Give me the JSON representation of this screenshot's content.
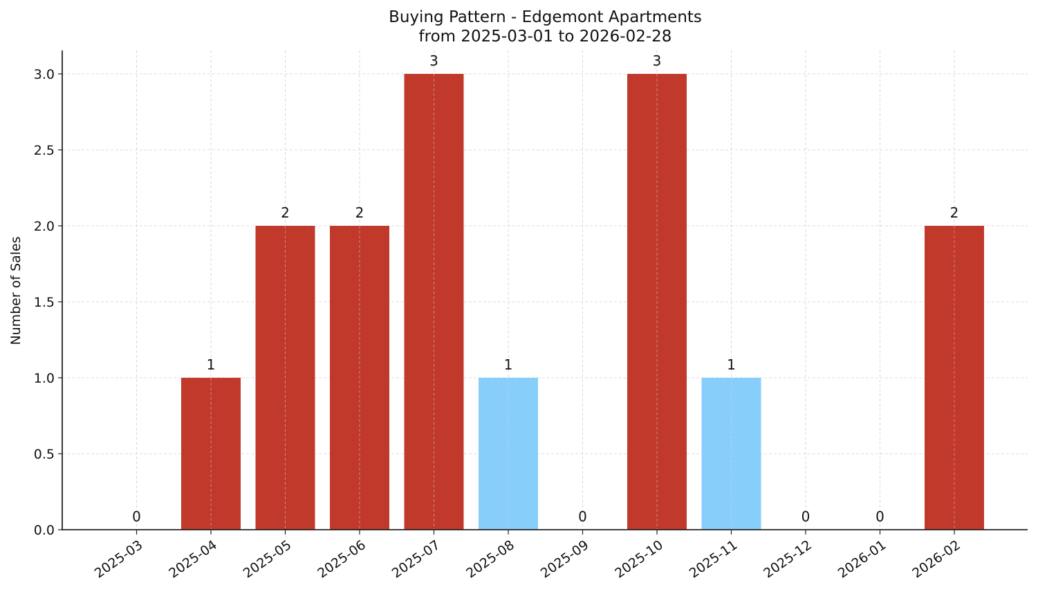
{
  "chart_data": {
    "type": "bar",
    "title": "Buying Pattern - Edgemont Apartments",
    "subtitle": "from 2025-03-01 to 2026-02-28",
    "xlabel": "",
    "ylabel": "Number of Sales",
    "ylim": [
      0,
      3.15
    ],
    "yticks": [
      "0.0",
      "0.5",
      "1.0",
      "1.5",
      "2.0",
      "2.5",
      "3.0"
    ],
    "grid": true,
    "legend": null,
    "categories": [
      "2025-03",
      "2025-04",
      "2025-05",
      "2025-06",
      "2025-07",
      "2025-08",
      "2025-09",
      "2025-10",
      "2025-11",
      "2025-12",
      "2026-01",
      "2026-02"
    ],
    "values": [
      0,
      1,
      2,
      2,
      3,
      1,
      0,
      3,
      1,
      0,
      0,
      2
    ],
    "bar_colors": [
      "#c0392b",
      "#c0392b",
      "#c0392b",
      "#c0392b",
      "#c0392b",
      "#87cefa",
      "#c0392b",
      "#c0392b",
      "#87cefa",
      "#c0392b",
      "#c0392b",
      "#c0392b"
    ],
    "data_labels": [
      "0",
      "1",
      "2",
      "2",
      "3",
      "1",
      "0",
      "3",
      "1",
      "0",
      "0",
      "2"
    ]
  },
  "colors": {
    "primary": "#c0392b",
    "highlight": "#87cefa",
    "grid": "#d0d0d0",
    "axis": "#222222"
  }
}
